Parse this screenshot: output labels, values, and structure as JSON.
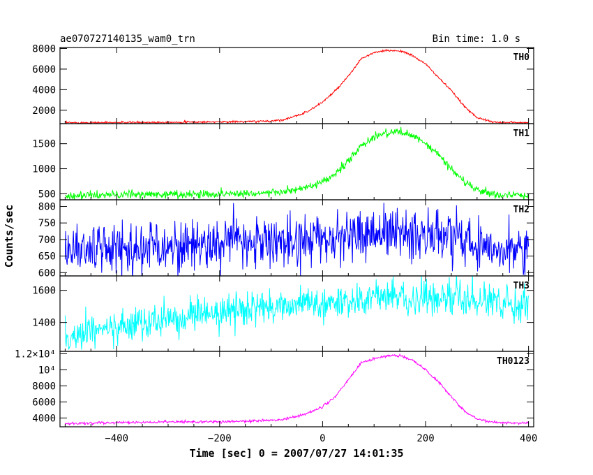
{
  "chart_data": {
    "type": "line",
    "title": "ae070727140135_wam0_trn",
    "subtitle": "Bin time: 1.0 s",
    "xlabel": "Time [sec] 0 = 2007/07/27 14:01:35",
    "ylabel": "Counts/sec",
    "xlim": [
      -510,
      410
    ],
    "x_ticks": [
      -400,
      -200,
      0,
      200,
      400
    ],
    "x_tick_labels": [
      "−400",
      "−200",
      "0",
      "200",
      "400"
    ],
    "grid": false,
    "legend": "none",
    "panels": [
      {
        "name": "TH0",
        "color": "#ff0000",
        "ylim": [
          700,
          8100
        ],
        "y_ticks": [
          2000,
          4000,
          6000,
          8000
        ],
        "y_tick_labels": [
          "2000",
          "4000",
          "6000",
          "8000"
        ],
        "x": [
          -500,
          -450,
          -400,
          -350,
          -300,
          -250,
          -200,
          -150,
          -100,
          -75,
          -50,
          -25,
          0,
          25,
          50,
          75,
          100,
          125,
          150,
          175,
          200,
          225,
          250,
          275,
          300,
          325,
          350,
          375,
          400
        ],
        "values": [
          800,
          800,
          810,
          820,
          840,
          850,
          870,
          900,
          950,
          1100,
          1450,
          2000,
          2800,
          3900,
          5300,
          7000,
          7600,
          7800,
          7800,
          7300,
          6500,
          5200,
          3900,
          2400,
          1300,
          900,
          820,
          810,
          800
        ],
        "noise": 50
      },
      {
        "name": "TH1",
        "color": "#00ff00",
        "ylim": [
          380,
          1900
        ],
        "y_ticks": [
          500,
          1000,
          1500
        ],
        "y_tick_labels": [
          "500",
          "1000",
          "1500"
        ],
        "x": [
          -500,
          -450,
          -400,
          -350,
          -300,
          -250,
          -200,
          -150,
          -100,
          -75,
          -50,
          -25,
          0,
          25,
          50,
          75,
          100,
          125,
          150,
          175,
          200,
          225,
          250,
          275,
          300,
          325,
          350,
          375,
          400
        ],
        "values": [
          460,
          470,
          480,
          485,
          490,
          490,
          500,
          510,
          520,
          540,
          580,
          640,
          720,
          900,
          1150,
          1450,
          1640,
          1720,
          1740,
          1650,
          1500,
          1280,
          1000,
          740,
          580,
          500,
          480,
          470,
          460
        ],
        "noise": 40
      },
      {
        "name": "TH2",
        "color": "#0000ff",
        "ylim": [
          590,
          820
        ],
        "y_ticks": [
          600,
          650,
          700,
          750,
          800
        ],
        "y_tick_labels": [
          "600",
          "650",
          "700",
          "750",
          "800"
        ],
        "x": [
          -500,
          -400,
          -300,
          -200,
          -100,
          0,
          50,
          100,
          150,
          200,
          250,
          300,
          350,
          400
        ],
        "values": [
          670,
          672,
          680,
          690,
          695,
          700,
          710,
          720,
          722,
          715,
          705,
          690,
          680,
          670
        ],
        "noise": 38
      },
      {
        "name": "TH3",
        "color": "#00ffff",
        "ylim": [
          1220,
          1690
        ],
        "y_ticks": [
          1400,
          1600
        ],
        "y_tick_labels": [
          "1400",
          "1600"
        ],
        "x": [
          -500,
          -450,
          -400,
          -350,
          -300,
          -250,
          -200,
          -150,
          -100,
          -50,
          0,
          50,
          100,
          150,
          200,
          250,
          300,
          350,
          400
        ],
        "values": [
          1300,
          1340,
          1370,
          1395,
          1420,
          1440,
          1460,
          1480,
          1495,
          1510,
          1520,
          1535,
          1550,
          1555,
          1550,
          1545,
          1540,
          1530,
          1510
        ],
        "noise": 50
      },
      {
        "name": "TH0123",
        "color": "#ff00ff",
        "ylim": [
          2900,
          12300
        ],
        "y_ticks": [
          4000,
          6000,
          8000,
          10000,
          12000
        ],
        "y_tick_labels": [
          "4000",
          "6000",
          "8000",
          "10⁴",
          "1.2×10⁴"
        ],
        "x": [
          -500,
          -450,
          -400,
          -350,
          -300,
          -250,
          -200,
          -150,
          -100,
          -75,
          -50,
          -25,
          0,
          25,
          50,
          75,
          100,
          125,
          150,
          175,
          200,
          225,
          250,
          275,
          300,
          325,
          350,
          375,
          400
        ],
        "values": [
          3300,
          3350,
          3400,
          3450,
          3500,
          3520,
          3550,
          3600,
          3700,
          3850,
          4200,
          4700,
          5400,
          6700,
          8700,
          10900,
          11400,
          11700,
          11800,
          11200,
          10000,
          8500,
          6700,
          4900,
          3900,
          3500,
          3400,
          3380,
          3350
        ],
        "noise": 80
      }
    ]
  }
}
